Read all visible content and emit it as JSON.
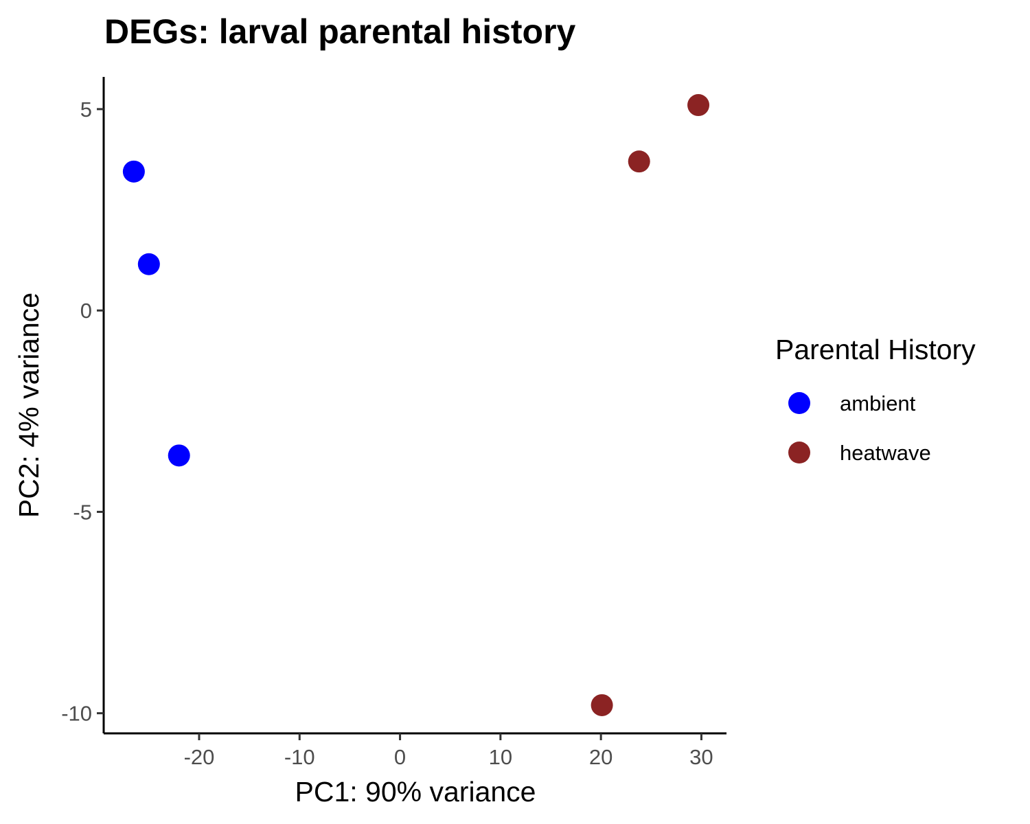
{
  "chart_data": {
    "type": "scatter",
    "title": "DEGs: larval parental history",
    "xlabel": "PC1: 90% variance",
    "ylabel": "PC2: 4% variance",
    "xlim": [
      -29.5,
      32.5
    ],
    "ylim": [
      -10.5,
      5.8
    ],
    "x_ticks": [
      -20,
      -10,
      0,
      10,
      20,
      30
    ],
    "y_ticks": [
      5,
      0,
      -5,
      -10
    ],
    "x_tick_labels": [
      "-20",
      "-10",
      "0",
      "10",
      "20",
      "30"
    ],
    "y_tick_labels": [
      "5",
      "0",
      "-5",
      "-10"
    ],
    "grid": false,
    "legend": {
      "title": "Parental History",
      "position": "right",
      "entries": [
        "ambient",
        "heatwave"
      ]
    },
    "series": [
      {
        "name": "ambient",
        "color": "#0000FF",
        "points": [
          {
            "x": -26.5,
            "y": 3.45
          },
          {
            "x": -25.0,
            "y": 1.15
          },
          {
            "x": -22.0,
            "y": -3.6
          }
        ]
      },
      {
        "name": "heatwave",
        "color": "#8B2323",
        "points": [
          {
            "x": 29.7,
            "y": 5.1
          },
          {
            "x": 23.8,
            "y": 3.7
          },
          {
            "x": 20.1,
            "y": -9.8
          }
        ]
      }
    ]
  }
}
